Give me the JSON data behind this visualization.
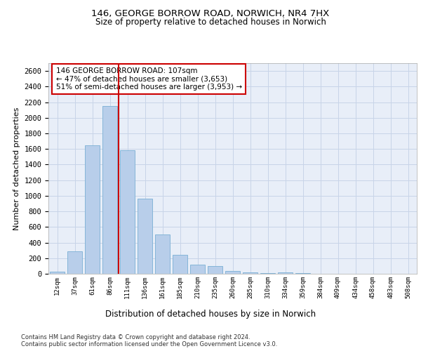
{
  "title1": "146, GEORGE BORROW ROAD, NORWICH, NR4 7HX",
  "title2": "Size of property relative to detached houses in Norwich",
  "xlabel": "Distribution of detached houses by size in Norwich",
  "ylabel": "Number of detached properties",
  "categories": [
    "12sqm",
    "37sqm",
    "61sqm",
    "86sqm",
    "111sqm",
    "136sqm",
    "161sqm",
    "185sqm",
    "210sqm",
    "235sqm",
    "260sqm",
    "285sqm",
    "310sqm",
    "334sqm",
    "359sqm",
    "384sqm",
    "409sqm",
    "434sqm",
    "458sqm",
    "483sqm",
    "508sqm"
  ],
  "bar_values": [
    25,
    290,
    1650,
    2150,
    1580,
    960,
    500,
    240,
    120,
    95,
    35,
    20,
    5,
    20,
    5,
    3,
    0,
    2,
    0,
    0,
    0
  ],
  "bar_color": "#b8ceea",
  "bar_edge_color": "#7aafd4",
  "vline_color": "#cc0000",
  "annotation_box_text": "146 GEORGE BORROW ROAD: 107sqm\n← 47% of detached houses are smaller (3,653)\n51% of semi-detached houses are larger (3,953) →",
  "annotation_box_color": "#cc0000",
  "ylim": [
    0,
    2700
  ],
  "yticks": [
    0,
    200,
    400,
    600,
    800,
    1000,
    1200,
    1400,
    1600,
    1800,
    2000,
    2200,
    2400,
    2600
  ],
  "footer_line1": "Contains HM Land Registry data © Crown copyright and database right 2024.",
  "footer_line2": "Contains public sector information licensed under the Open Government Licence v3.0.",
  "bg_color": "#ffffff",
  "plot_bg_color": "#e8eef8",
  "grid_color": "#c8d4e8"
}
